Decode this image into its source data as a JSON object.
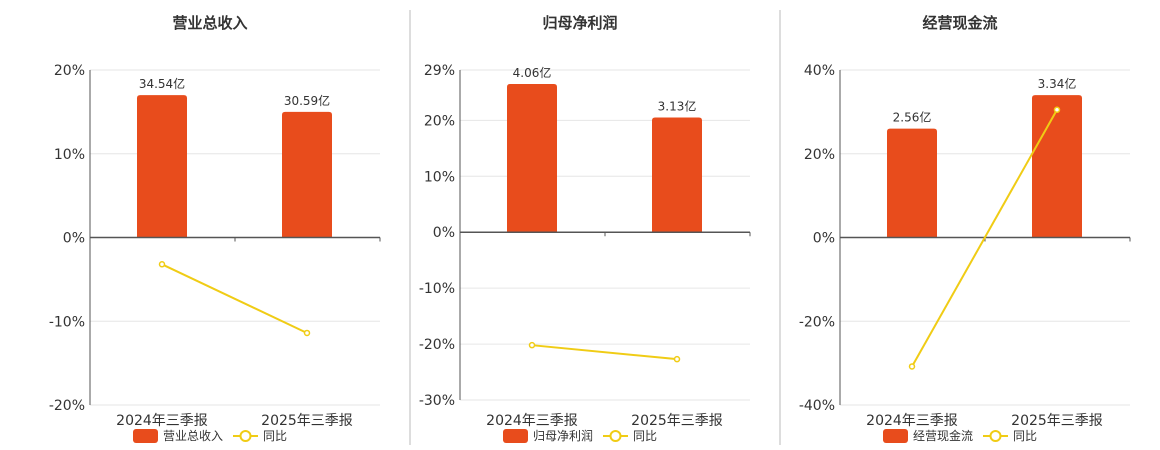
{
  "colors": {
    "bar": "#E84C1C",
    "line": "#F0CC15",
    "axis": "#555555",
    "grid": "#E6E6E6",
    "text": "#333333",
    "divider": "#BBBBBB"
  },
  "legend_line_label": "同比",
  "chart_data": [
    {
      "type": "bar",
      "title": "营业总收入",
      "categories": [
        "2024年三季报",
        "2025年三季报"
      ],
      "bar_series_name": "营业总收入",
      "bar_values": [
        34.54,
        30.59
      ],
      "bar_labels": [
        "34.54亿",
        "30.59亿"
      ],
      "bar_axis_values": [
        17,
        15
      ],
      "line_series_name": "同比",
      "line_values": [
        -3.2,
        -11.4
      ],
      "ylim": [
        -20,
        20
      ],
      "yticks": [
        20,
        10,
        0,
        -10,
        -20
      ],
      "ytick_labels": [
        "20%",
        "10%",
        "0%",
        "-10%",
        "-20%"
      ],
      "grid": true,
      "legend_position": "bottom"
    },
    {
      "type": "bar",
      "title": "归母净利润",
      "categories": [
        "2024年三季报",
        "2025年三季报"
      ],
      "bar_series_name": "归母净利润",
      "bar_values": [
        4.06,
        3.13
      ],
      "bar_labels": [
        "4.06亿",
        "3.13亿"
      ],
      "bar_axis_values": [
        26.5,
        20.5
      ],
      "line_series_name": "同比",
      "line_values": [
        -20.2,
        -22.7
      ],
      "ylim": [
        -30,
        29
      ],
      "yticks": [
        29,
        20,
        10,
        0,
        -10,
        -20,
        -30
      ],
      "ytick_labels": [
        "29%",
        "20%",
        "10%",
        "0%",
        "-10%",
        "-20%",
        "-30%"
      ],
      "grid": true,
      "legend_position": "bottom"
    },
    {
      "type": "bar",
      "title": "经营现金流",
      "categories": [
        "2024年三季报",
        "2025年三季报"
      ],
      "bar_series_name": "经营现金流",
      "bar_values": [
        2.56,
        3.34
      ],
      "bar_labels": [
        "2.56亿",
        "3.34亿"
      ],
      "bar_axis_values": [
        26,
        34
      ],
      "line_series_name": "同比",
      "line_values": [
        -30.8,
        30.5
      ],
      "ylim": [
        -40,
        40
      ],
      "yticks": [
        40,
        20,
        0,
        -20,
        -40
      ],
      "ytick_labels": [
        "40%",
        "20%",
        "0%",
        "-20%",
        "-40%"
      ],
      "grid": true,
      "legend_position": "bottom"
    }
  ]
}
